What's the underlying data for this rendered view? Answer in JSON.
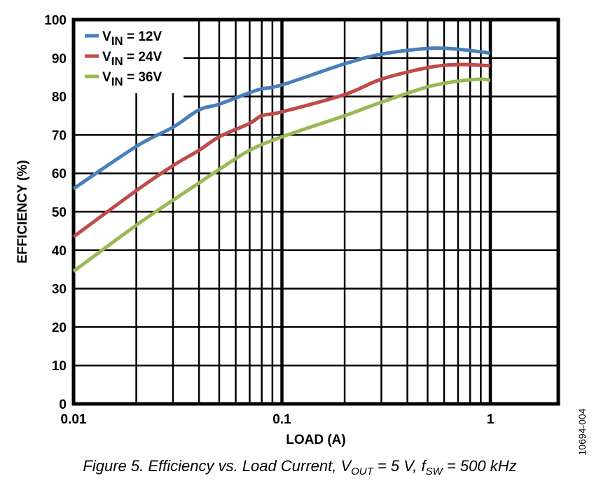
{
  "chart_data": {
    "type": "line",
    "title": "",
    "caption": {
      "prefix": "Figure 5. Efficiency vs. Load Current, V",
      "sub1": "OUT",
      "mid": " = 5 V, f",
      "sub2": "SW",
      "suffix": " = 500 kHz"
    },
    "figure_id": "10694-004",
    "xlabel": "LOAD (A)",
    "ylabel": "EFFICIENCY (%)",
    "xscale": "log",
    "xlim": [
      0.01,
      2.1
    ],
    "ylim": [
      0,
      100
    ],
    "xticks": [
      {
        "v": 0.01,
        "label": "0.01"
      },
      {
        "v": 0.1,
        "label": "0.1"
      },
      {
        "v": 1,
        "label": "1"
      }
    ],
    "yticks": [
      0,
      10,
      20,
      30,
      40,
      50,
      60,
      70,
      80,
      90,
      100
    ],
    "grid": true,
    "legend_position": "top-left",
    "series": [
      {
        "name_main": "V",
        "name_sub": "IN",
        "name_rest": " = 12V",
        "color": "#4a7ebb",
        "x": [
          0.01,
          0.02,
          0.03,
          0.04,
          0.05,
          0.07,
          0.08,
          0.1,
          0.2,
          0.3,
          0.5,
          0.7,
          1
        ],
        "y": [
          56,
          67,
          72,
          76.5,
          78,
          81,
          82,
          83,
          88.5,
          91,
          92.5,
          92.3,
          91.3
        ]
      },
      {
        "name_main": "V",
        "name_sub": "IN",
        "name_rest": " = 24V",
        "color": "#be4b48",
        "x": [
          0.01,
          0.02,
          0.03,
          0.04,
          0.05,
          0.07,
          0.08,
          0.1,
          0.2,
          0.3,
          0.5,
          0.7,
          1
        ],
        "y": [
          43.5,
          55.5,
          62,
          66,
          69.5,
          73,
          75,
          76,
          80.5,
          84.5,
          87.5,
          88.3,
          88
        ]
      },
      {
        "name_main": "V",
        "name_sub": "IN",
        "name_rest": " = 36V",
        "color": "#98b954",
        "x": [
          0.01,
          0.02,
          0.03,
          0.04,
          0.05,
          0.07,
          0.1,
          0.2,
          0.3,
          0.5,
          0.7,
          0.9,
          1
        ],
        "y": [
          34.5,
          46.5,
          53,
          57.5,
          61,
          66,
          69.5,
          75,
          78.5,
          82.5,
          84,
          84.5,
          84.2
        ]
      }
    ]
  }
}
